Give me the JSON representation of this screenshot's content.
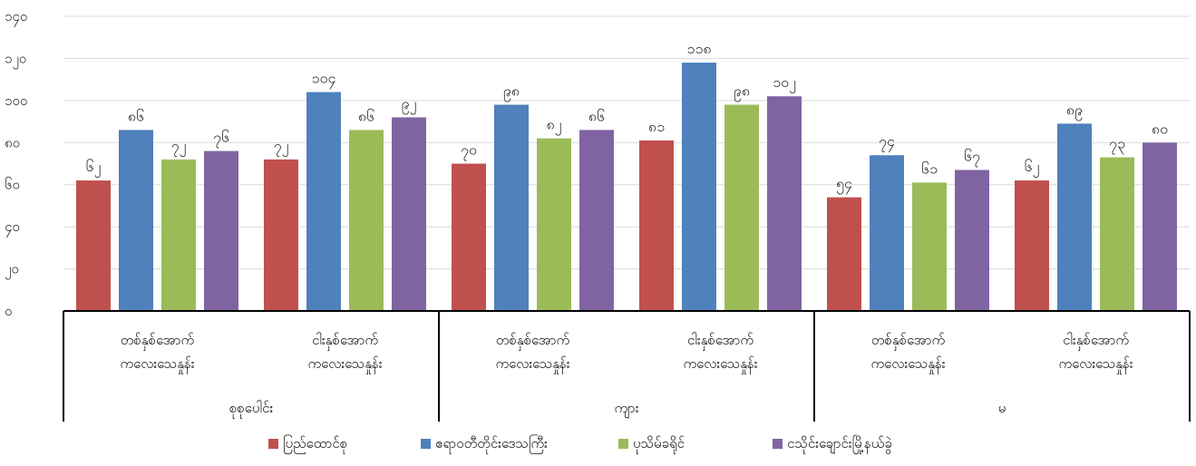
{
  "chart_data": {
    "type": "bar",
    "title": "",
    "xlabel": "",
    "ylabel": "",
    "ylim": [
      0,
      140
    ],
    "yticks": [
      0,
      20,
      40,
      60,
      80,
      100,
      120,
      140
    ],
    "ytick_labels": [
      "၀",
      "၂၀",
      "၄၀",
      "၆၀",
      "၈၀",
      "၁၀၀",
      "၁၂၀",
      "၁၄၀"
    ],
    "grid": true,
    "legend_position": "bottom",
    "groups": [
      "စုစုပေါင်း",
      "ကျား",
      "မ"
    ],
    "subcategories": [
      "တစ်နှစ်အောက် ကလေးသေနှုန်း",
      "ငါးနှစ်အောက် ကလေးသေနှုန်း"
    ],
    "categories": [
      "စုစုပေါင်း / တစ်နှစ်အောက် ကလေးသေနှုန်း",
      "စုစုပေါင်း / ငါးနှစ်အောက် ကလေးသေနှုန်း",
      "ကျား / တစ်နှစ်အောက် ကလေးသေနှုန်း",
      "ကျား / ငါးနှစ်အောက် ကလေးသေနှုန်း",
      "မ / တစ်နှစ်အောက် ကလေးသေနှုန်း",
      "မ / ငါးနှစ်အောက် ကလေးသေနှုန်း"
    ],
    "series": [
      {
        "name": "ပြည်ထောင်စု",
        "color": "#c0504d",
        "values": [
          62,
          72,
          70,
          81,
          54,
          62
        ],
        "labels": [
          "၆၂",
          "၇၂",
          "၇၀",
          "၈၁",
          "၅၄",
          "၆၂"
        ]
      },
      {
        "name": "ဧရာဝတီတိုင်းဒေသကြီး",
        "color": "#4f81bd",
        "values": [
          86,
          104,
          98,
          118,
          74,
          89
        ],
        "labels": [
          "၈၆",
          "၁၀၄",
          "၉၈",
          "၁၁၈",
          "၇၄",
          "၈၉"
        ]
      },
      {
        "name": "ပုသိမ်ခရိုင်",
        "color": "#9bbb59",
        "values": [
          72,
          86,
          82,
          98,
          61,
          73
        ],
        "labels": [
          "၇၂",
          "၈၆",
          "၈၂",
          "၉၈",
          "၆၁",
          "၇၃"
        ]
      },
      {
        "name": "ငသိုင်းချောင်းမြို့နယ်ခွဲ",
        "color": "#8064a2",
        "values": [
          76,
          92,
          86,
          102,
          67,
          80
        ],
        "labels": [
          "၇၆",
          "၉၂",
          "၈၆",
          "၁၀၂",
          "၆၇",
          "၈၀"
        ]
      }
    ]
  }
}
